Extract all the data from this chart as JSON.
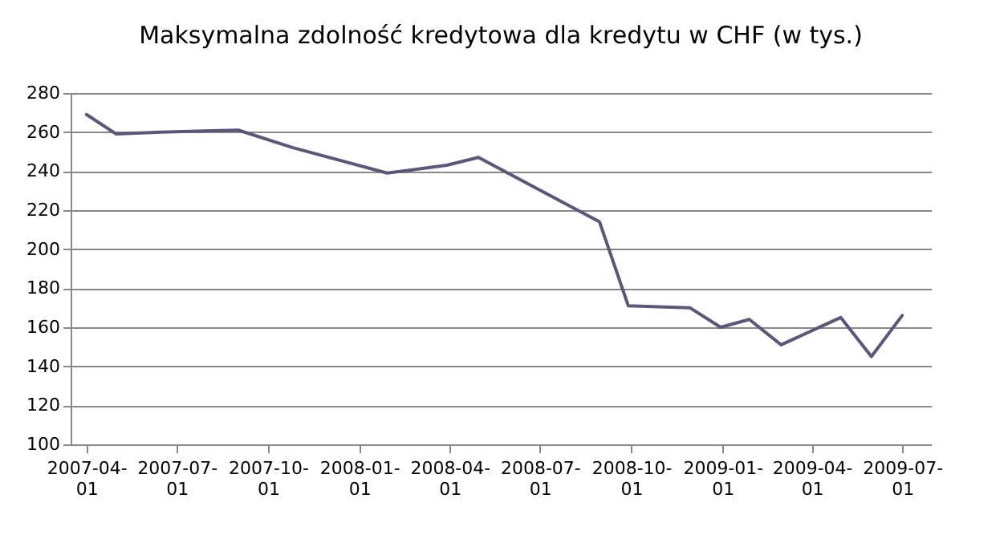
{
  "chart_data": {
    "type": "line",
    "title": "Maksymalna zdolność kredytowa dla kredytu w CHF (w tys.)",
    "x": [
      "2007-04-01",
      "2007-05-01",
      "2007-06-15",
      "2007-09-01",
      "2007-10-26",
      "2008-01-29",
      "2008-03-29",
      "2008-04-30",
      "2008-08-30",
      "2008-09-28",
      "2008-11-29",
      "2008-12-30",
      "2009-01-28",
      "2009-03-01",
      "2009-04-30",
      "2009-05-31",
      "2009-07-01"
    ],
    "series": [
      {
        "color": "#5b5778",
        "values": [
          269,
          259,
          260,
          261,
          252,
          239,
          243,
          247,
          214,
          171,
          170,
          160,
          164,
          151,
          165,
          145,
          166
        ]
      }
    ],
    "xlim": [
      "2007-03-16",
      "2009-07-30"
    ],
    "xticks": [
      "2007-04-01",
      "2007-07-01",
      "2007-10-01",
      "2008-01-01",
      "2008-04-01",
      "2008-07-01",
      "2008-10-01",
      "2009-01-01",
      "2009-04-01",
      "2009-07-01"
    ],
    "ylim": [
      100,
      280
    ],
    "yticks": [
      100,
      120,
      140,
      160,
      180,
      200,
      220,
      240,
      260,
      280
    ],
    "grid": "y",
    "marker": "none",
    "line_style": "solid"
  }
}
